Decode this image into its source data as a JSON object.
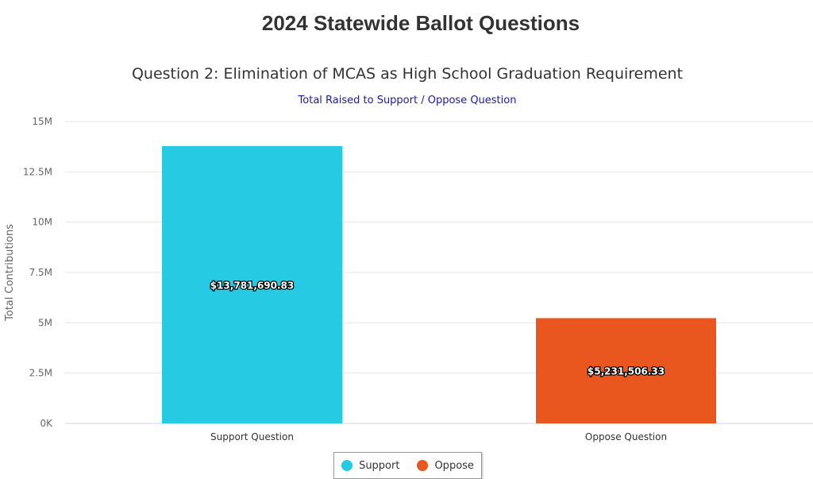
{
  "page_title": "2024 Statewide Ballot Questions",
  "chart_data": {
    "type": "bar",
    "title": "Question 2: Elimination of MCAS as High School Graduation Requirement",
    "subtitle": "Total Raised to Support / Oppose Question",
    "xlabel": "",
    "ylabel": "Total Contributions",
    "ylim": [
      0,
      15000000
    ],
    "yticks": [
      {
        "v": 0,
        "label": "0K"
      },
      {
        "v": 2500000,
        "label": "2.5M"
      },
      {
        "v": 5000000,
        "label": "5M"
      },
      {
        "v": 7500000,
        "label": "7.5M"
      },
      {
        "v": 10000000,
        "label": "10M"
      },
      {
        "v": 12500000,
        "label": "12.5M"
      },
      {
        "v": 15000000,
        "label": "15M"
      }
    ],
    "categories": [
      "Support Question",
      "Oppose Question"
    ],
    "values": [
      13781690.83,
      5231506.33
    ],
    "data_labels": [
      "$13,781,690.83",
      "$5,231,506.33"
    ],
    "colors": [
      "#26cbe3",
      "#ea571e"
    ],
    "grid": true,
    "legend": {
      "position": "bottom",
      "entries": [
        {
          "name": "Support",
          "color": "#26cbe3"
        },
        {
          "name": "Oppose",
          "color": "#ea571e"
        }
      ]
    }
  }
}
